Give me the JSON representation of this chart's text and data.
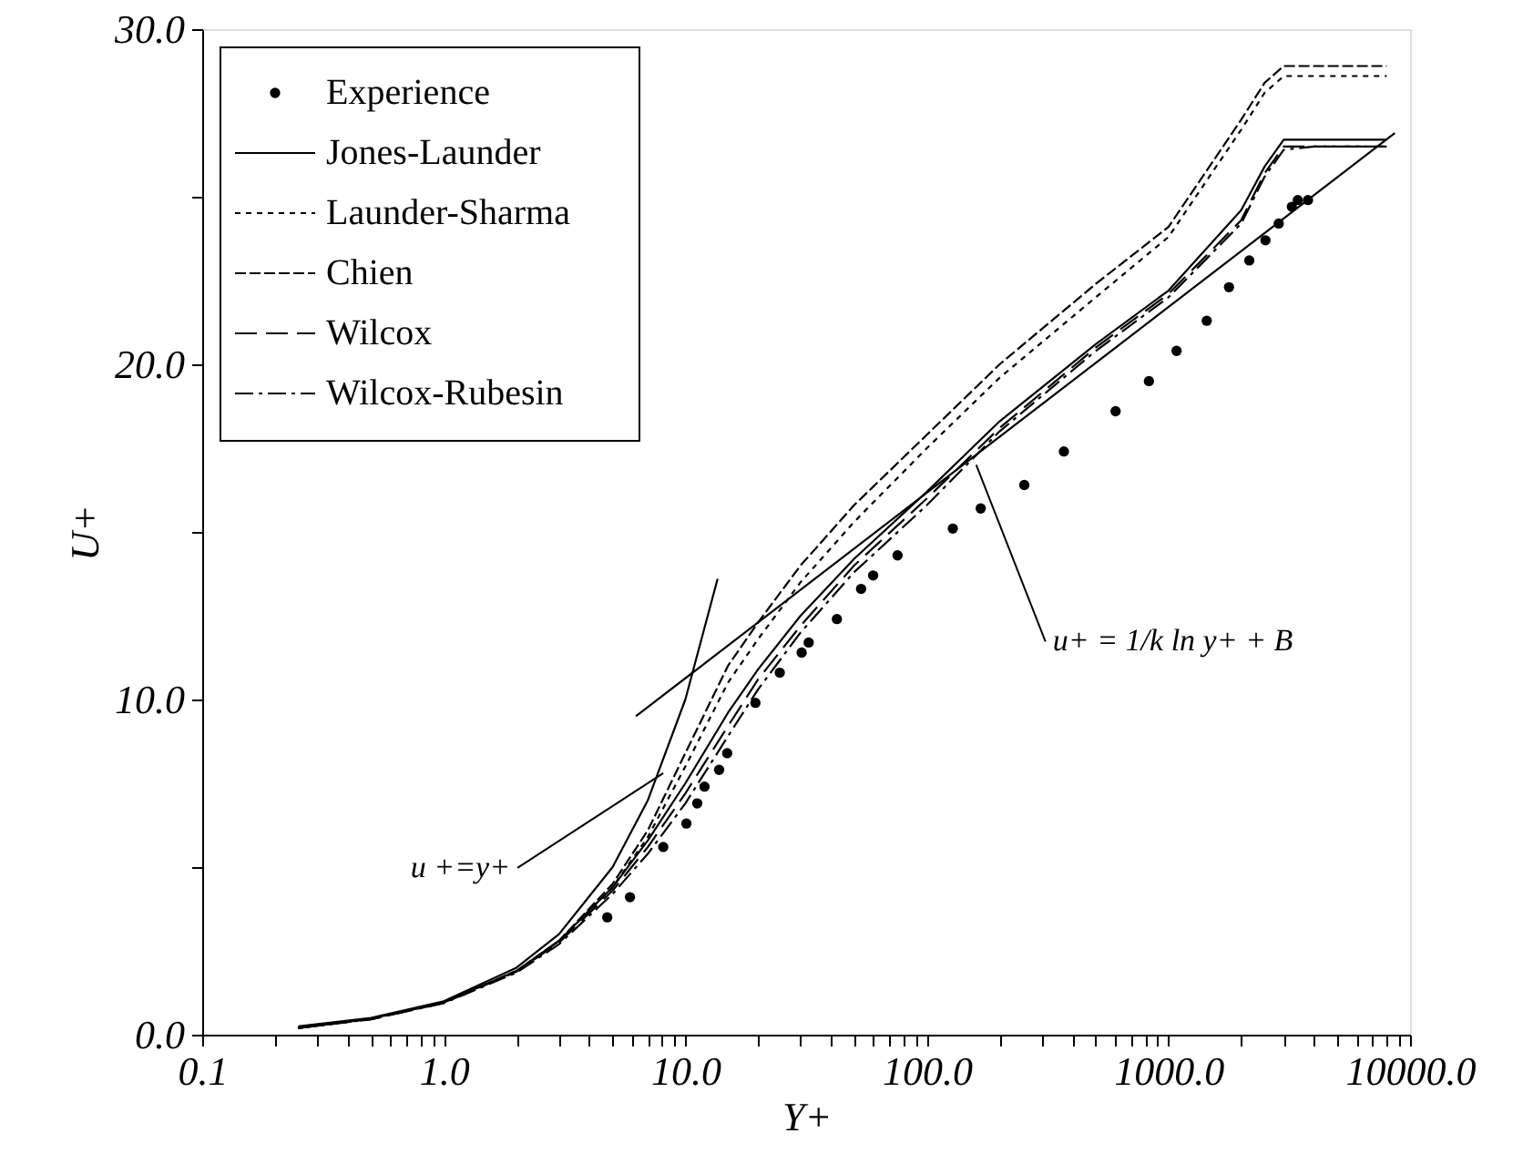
{
  "chart_data": {
    "type": "line",
    "xlabel": "Y+",
    "ylabel": "U+",
    "log": "x",
    "grid": false,
    "legend": "top left",
    "xlim": [
      0.1,
      10000
    ],
    "ylim": [
      0,
      30
    ],
    "xticks": [
      {
        "value": 0.1,
        "label": "0.1"
      },
      {
        "value": 0.2,
        "label": null
      },
      {
        "value": 0.3,
        "label": null
      },
      {
        "value": 0.4,
        "label": null
      },
      {
        "value": 0.5,
        "label": null
      },
      {
        "value": 0.6,
        "label": null
      },
      {
        "value": 0.7,
        "label": null
      },
      {
        "value": 0.8,
        "label": null
      },
      {
        "value": 0.9,
        "label": null
      },
      {
        "value": 1,
        "label": "1.0"
      },
      {
        "value": 2,
        "label": null
      },
      {
        "value": 3,
        "label": null
      },
      {
        "value": 4,
        "label": null
      },
      {
        "value": 5,
        "label": null
      },
      {
        "value": 6,
        "label": null
      },
      {
        "value": 7,
        "label": null
      },
      {
        "value": 8,
        "label": null
      },
      {
        "value": 9,
        "label": null
      },
      {
        "value": 10,
        "label": "10.0"
      },
      {
        "value": 20,
        "label": null
      },
      {
        "value": 30,
        "label": null
      },
      {
        "value": 40,
        "label": null
      },
      {
        "value": 50,
        "label": null
      },
      {
        "value": 60,
        "label": null
      },
      {
        "value": 70,
        "label": null
      },
      {
        "value": 80,
        "label": null
      },
      {
        "value": 90,
        "label": null
      },
      {
        "value": 100,
        "label": "100.0"
      },
      {
        "value": 200,
        "label": null
      },
      {
        "value": 300,
        "label": null
      },
      {
        "value": 400,
        "label": null
      },
      {
        "value": 500,
        "label": null
      },
      {
        "value": 600,
        "label": null
      },
      {
        "value": 700,
        "label": null
      },
      {
        "value": 800,
        "label": null
      },
      {
        "value": 900,
        "label": null
      },
      {
        "value": 1000,
        "label": "1000.0"
      },
      {
        "value": 2000,
        "label": null
      },
      {
        "value": 3000,
        "label": null
      },
      {
        "value": 4000,
        "label": null
      },
      {
        "value": 5000,
        "label": null
      },
      {
        "value": 6000,
        "label": null
      },
      {
        "value": 7000,
        "label": null
      },
      {
        "value": 8000,
        "label": null
      },
      {
        "value": 9000,
        "label": null
      },
      {
        "value": 10000,
        "label": "10000.0"
      }
    ],
    "yticks": [
      {
        "value": 0,
        "label": "0.0"
      },
      {
        "value": 5,
        "label": null
      },
      {
        "value": 10,
        "label": "10.0"
      },
      {
        "value": 15,
        "label": null
      },
      {
        "value": 20,
        "label": "20.0"
      },
      {
        "value": 25,
        "label": null
      },
      {
        "value": 30,
        "label": "30.0"
      }
    ],
    "annotations": [
      {
        "text": "u +=y+",
        "x": 8.1,
        "y": 7.8
      },
      {
        "text": "u+ = 1/k ln y+ + B",
        "x": 160,
        "y": 17.0
      }
    ],
    "series": [
      {
        "name": "Experience",
        "type": "scatter",
        "marker": "circle",
        "color": "#000000",
        "x": [
          4.75,
          5.9,
          8.1,
          10.1,
          11.2,
          12.0,
          13.8,
          14.9,
          19.5,
          24.6,
          30.3,
          32.4,
          42.4,
          53.4,
          59.9,
          75.6,
          128,
          167,
          253,
          369,
          604,
          830,
          1080,
          1440,
          1780,
          2160,
          2520,
          2860,
          3240,
          3430,
          3780
        ],
        "values": [
          3.5,
          4.1,
          5.6,
          6.3,
          6.9,
          7.4,
          7.9,
          8.4,
          9.9,
          10.8,
          11.4,
          11.7,
          12.4,
          13.3,
          13.7,
          14.3,
          15.1,
          15.7,
          16.4,
          17.4,
          18.6,
          19.5,
          20.4,
          21.3,
          22.3,
          23.1,
          23.7,
          24.2,
          24.7,
          24.9,
          24.9
        ]
      },
      {
        "name": "Jones-Launder",
        "line_style": "solid",
        "color": "#000000",
        "x": [
          0.25,
          0.5,
          1,
          2,
          3,
          5,
          7,
          10,
          15,
          20,
          30,
          50,
          100,
          200,
          500,
          1000,
          2000,
          2500,
          3000,
          4000,
          8000
        ],
        "values": [
          0.2,
          0.48,
          0.97,
          1.9,
          2.8,
          4.4,
          5.8,
          7.5,
          9.6,
          10.9,
          12.5,
          14.2,
          16.2,
          18.3,
          20.6,
          22.2,
          24.6,
          25.9,
          26.7,
          26.7,
          26.7
        ]
      },
      {
        "name": "Launder-Sharma",
        "line_style": "dotted",
        "color": "#000000",
        "x": [
          0.25,
          0.5,
          1,
          2,
          3,
          5,
          7,
          10,
          15,
          20,
          30,
          50,
          100,
          200,
          500,
          1000,
          2000,
          2500,
          3000,
          4000,
          8000
        ],
        "values": [
          0.2,
          0.47,
          0.96,
          1.9,
          2.8,
          4.4,
          5.9,
          8.0,
          10.5,
          11.8,
          13.5,
          15.3,
          17.5,
          19.6,
          22.0,
          23.8,
          27.0,
          28.1,
          28.6,
          28.6,
          28.6
        ]
      },
      {
        "name": "Chien",
        "line_style": "dashed",
        "color": "#000000",
        "x": [
          0.25,
          0.5,
          1,
          2,
          3,
          5,
          7,
          10,
          15,
          20,
          30,
          50,
          100,
          200,
          500,
          1000,
          2000,
          2500,
          3000,
          4000,
          8000
        ],
        "values": [
          0.2,
          0.47,
          0.96,
          1.9,
          2.8,
          4.5,
          6.1,
          8.4,
          11.0,
          12.3,
          14.0,
          15.8,
          17.9,
          20.0,
          22.4,
          24.1,
          27.3,
          28.4,
          28.9,
          28.9,
          28.9
        ]
      },
      {
        "name": "Wilcox",
        "line_style": "longdash",
        "color": "#000000",
        "x": [
          0.25,
          0.5,
          1,
          2,
          3,
          5,
          7,
          10,
          15,
          20,
          30,
          50,
          100,
          200,
          500,
          1000,
          2000,
          2500,
          3000,
          4000,
          8000
        ],
        "values": [
          0.2,
          0.46,
          0.95,
          1.88,
          2.75,
          4.3,
          5.6,
          7.2,
          9.2,
          10.6,
          12.2,
          14.0,
          16.0,
          18.1,
          20.5,
          22.1,
          24.3,
          25.7,
          26.5,
          26.5,
          26.5
        ]
      },
      {
        "name": "Wilcox-Rubesin",
        "line_style": "dashdot",
        "color": "#000000",
        "x": [
          0.25,
          0.5,
          1,
          2,
          3,
          5,
          7,
          10,
          15,
          20,
          30,
          50,
          100,
          200,
          500,
          1000,
          2000,
          2500,
          3000,
          4000,
          8000
        ],
        "values": [
          0.2,
          0.46,
          0.94,
          1.85,
          2.7,
          4.2,
          5.4,
          6.9,
          8.9,
          10.3,
          12.0,
          13.8,
          15.8,
          18.0,
          20.4,
          22.0,
          24.2,
          25.6,
          26.4,
          26.5,
          26.5
        ]
      },
      {
        "line_style": "solid",
        "color": "#000000",
        "x": [
          0.25,
          0.5,
          1,
          2,
          3,
          5,
          7,
          10,
          13.6
        ],
        "values": [
          0.25,
          0.5,
          1,
          2,
          3,
          5,
          7,
          10,
          13.6
        ]
      },
      {
        "line_style": "solid",
        "color": "#000000",
        "x": [
          6.24,
          8650
        ],
        "values": [
          9.5,
          26.9
        ]
      }
    ]
  }
}
